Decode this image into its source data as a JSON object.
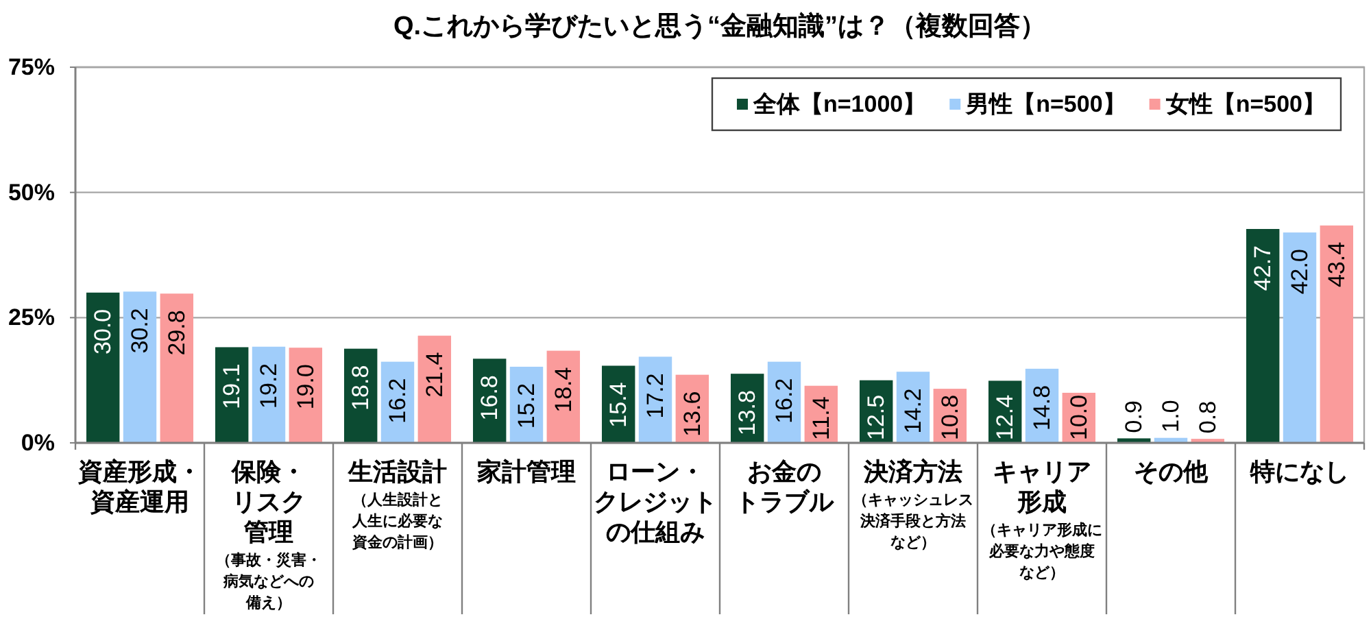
{
  "chart_data": {
    "type": "bar",
    "title": "Q.これから学びたいと思う“金融知識”は？（複数回答）",
    "categories": [
      "資産形成・資産運用",
      "保険・リスク管理（事故・災害・病気などへの備え）",
      "生活設計（人生設計と人生に必要な資金の計画）",
      "家計管理",
      "ローン・クレジットの仕組み",
      "お金のトラブル",
      "決済方法（キャッシュレス決済手段と方法など）",
      "キャリア形成（キャリア形成に必要な力や態度など）",
      "その他",
      "特になし"
    ],
    "series": [
      {
        "name": "全体【n=1000】",
        "color": "#0c4b32",
        "values": [
          30.0,
          19.1,
          18.8,
          16.8,
          15.4,
          13.8,
          12.5,
          12.4,
          0.9,
          42.7
        ],
        "value_labels": [
          "30.0",
          "19.1",
          "18.8",
          "16.8",
          "15.4",
          "13.8",
          "12.5",
          "12.4",
          "0.9",
          "42.7"
        ]
      },
      {
        "name": "男性【n=500】",
        "color": "#a0cdfa",
        "values": [
          30.2,
          19.2,
          16.2,
          15.2,
          17.2,
          16.2,
          14.2,
          14.8,
          1.0,
          42.0
        ],
        "value_labels": [
          "30.2",
          "19.2",
          "16.2",
          "15.2",
          "17.2",
          "16.2",
          "14.2",
          "14.8",
          "1.0",
          "42.0"
        ]
      },
      {
        "name": "女性【n=500】",
        "color": "#fa9b9b",
        "values": [
          29.8,
          19.0,
          21.4,
          18.4,
          13.6,
          11.4,
          10.8,
          10.0,
          0.8,
          43.4
        ],
        "value_labels": [
          "29.8",
          "19.0",
          "21.4",
          "18.4",
          "13.6",
          "11.4",
          "10.8",
          "10.0",
          "0.8",
          "43.4"
        ]
      }
    ],
    "ylim": [
      0,
      75
    ],
    "yticks": [
      {
        "value": 0,
        "label": "0%"
      },
      {
        "value": 25,
        "label": "25%"
      },
      {
        "value": 50,
        "label": "50%"
      },
      {
        "value": 75,
        "label": "75%"
      }
    ],
    "grid": "y",
    "legend": "top right"
  }
}
